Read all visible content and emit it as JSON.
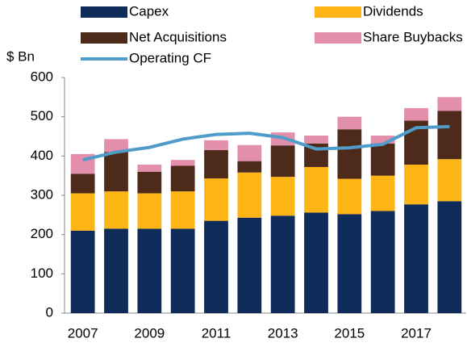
{
  "chart_data": {
    "type": "bar",
    "stacked": true,
    "ylabel": "$ Bn",
    "categories": [
      "2007",
      null,
      "2009",
      null,
      "2011",
      null,
      "2013",
      null,
      "2015",
      null,
      "2017",
      null
    ],
    "series": [
      {
        "name": "Capex",
        "color": "#0e2b59",
        "values": [
          210,
          215,
          215,
          215,
          235,
          243,
          248,
          256,
          252,
          260,
          277,
          285
        ]
      },
      {
        "name": "Dividends",
        "color": "#fdb515",
        "values": [
          95,
          95,
          90,
          95,
          108,
          115,
          99,
          116,
          90,
          90,
          101,
          107
        ]
      },
      {
        "name": "Net Acquisitions",
        "color": "#4e2a1b",
        "values": [
          50,
          100,
          55,
          65,
          72,
          29,
          80,
          60,
          126,
          82,
          112,
          123
        ]
      },
      {
        "name": "Share Buybacks",
        "color": "#e38fab",
        "values": [
          50,
          33,
          18,
          15,
          25,
          41,
          33,
          20,
          32,
          20,
          32,
          35
        ]
      },
      {
        "name": "Operating CF",
        "color": "#4f9bc9",
        "type": "line",
        "values": [
          390,
          410,
          422,
          443,
          455,
          458,
          447,
          418,
          421,
          430,
          472,
          475
        ]
      }
    ],
    "ylim": [
      0,
      600
    ],
    "yticks": [
      0,
      100,
      200,
      300,
      400,
      500,
      600
    ],
    "grid": false
  }
}
